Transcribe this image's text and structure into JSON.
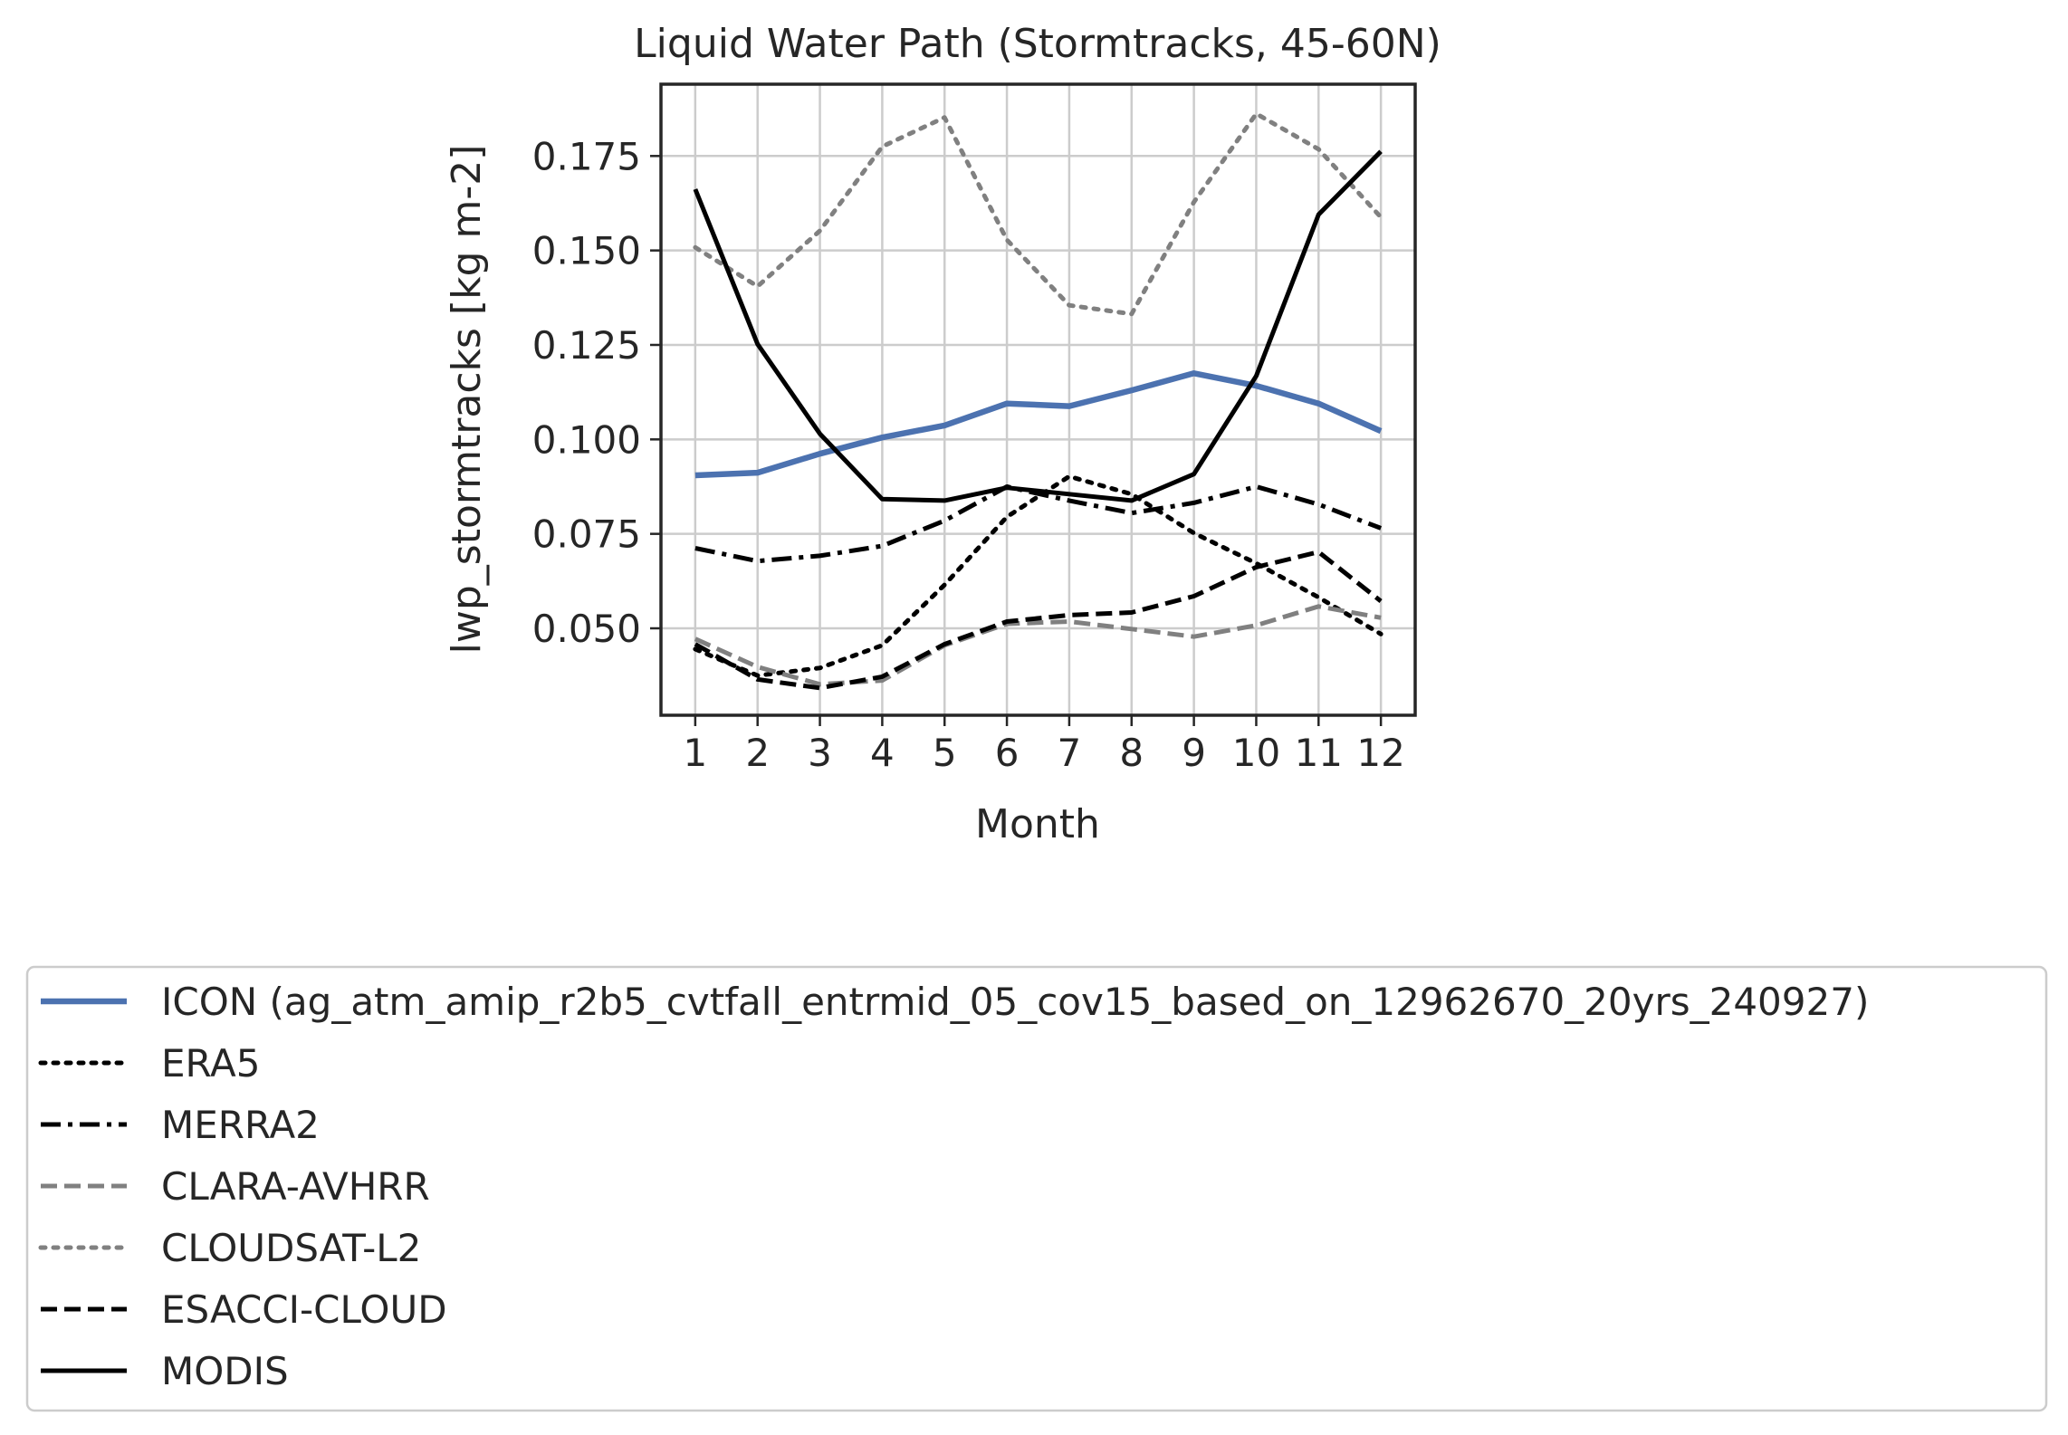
{
  "chart_data": {
    "type": "line",
    "title": "Liquid Water Path (Stormtracks, 45-60N)",
    "xlabel": "Month",
    "ylabel": "lwp_stormtracks [kg m-2]",
    "x": [
      1,
      2,
      3,
      4,
      5,
      6,
      7,
      8,
      9,
      10,
      11,
      12
    ],
    "xlim": [
      0.45,
      12.55
    ],
    "ylim": [
      0.027,
      0.194
    ],
    "xticks": [
      "1",
      "2",
      "3",
      "4",
      "5",
      "6",
      "7",
      "8",
      "9",
      "10",
      "11",
      "12"
    ],
    "yticks": [
      {
        "value": 0.05,
        "label": "0.050"
      },
      {
        "value": 0.075,
        "label": "0.075"
      },
      {
        "value": 0.1,
        "label": "0.100"
      },
      {
        "value": 0.125,
        "label": "0.125"
      },
      {
        "value": 0.15,
        "label": "0.150"
      },
      {
        "value": 0.175,
        "label": "0.175"
      }
    ],
    "grid": true,
    "legend_position": "below",
    "series": [
      {
        "name": "ICON (ag_atm_amip_r2b5_cvtfall_entrmid_05_cov15_based_on_12962670_20yrs_240927)",
        "color": "#4c72b0",
        "style": "solid",
        "values": [
          0.0905,
          0.0912,
          0.0962,
          0.1005,
          0.1037,
          0.1095,
          0.1088,
          0.113,
          0.1175,
          0.1142,
          0.1095,
          0.1022
        ]
      },
      {
        "name": "ERA5",
        "color": "#000000",
        "style": "dotted",
        "values": [
          0.0445,
          0.0375,
          0.0395,
          0.0455,
          0.0615,
          0.0795,
          0.0902,
          0.0855,
          0.0752,
          0.0672,
          0.0582,
          0.0485
        ]
      },
      {
        "name": "MERRA2",
        "color": "#000000",
        "style": "dashdot",
        "values": [
          0.0712,
          0.0678,
          0.0692,
          0.0718,
          0.0785,
          0.0875,
          0.0838,
          0.0805,
          0.0832,
          0.0875,
          0.0828,
          0.0765
        ]
      },
      {
        "name": "CLARA-AVHRR",
        "color": "#808080",
        "style": "dashed",
        "values": [
          0.0472,
          0.0398,
          0.0352,
          0.0362,
          0.0455,
          0.0512,
          0.0518,
          0.0498,
          0.0478,
          0.0508,
          0.0558,
          0.0528
        ]
      },
      {
        "name": "CLOUDSAT-L2",
        "color": "#808080",
        "style": "dotted",
        "values": [
          0.1508,
          0.1405,
          0.1552,
          0.1775,
          0.1852,
          0.1528,
          0.1355,
          0.1332,
          0.1628,
          0.1862,
          0.1768,
          0.1588
        ]
      },
      {
        "name": "ESACCI-CLOUD",
        "color": "#000000",
        "style": "dashed",
        "values": [
          0.0458,
          0.0365,
          0.0342,
          0.0372,
          0.0458,
          0.0518,
          0.0535,
          0.0542,
          0.0585,
          0.0662,
          0.0702,
          0.0572
        ]
      },
      {
        "name": "MODIS",
        "color": "#000000",
        "style": "solid",
        "values": [
          0.1662,
          0.1252,
          0.1015,
          0.0842,
          0.0838,
          0.0872,
          0.0855,
          0.0838,
          0.0908,
          0.1168,
          0.1595,
          0.1762
        ]
      }
    ]
  }
}
